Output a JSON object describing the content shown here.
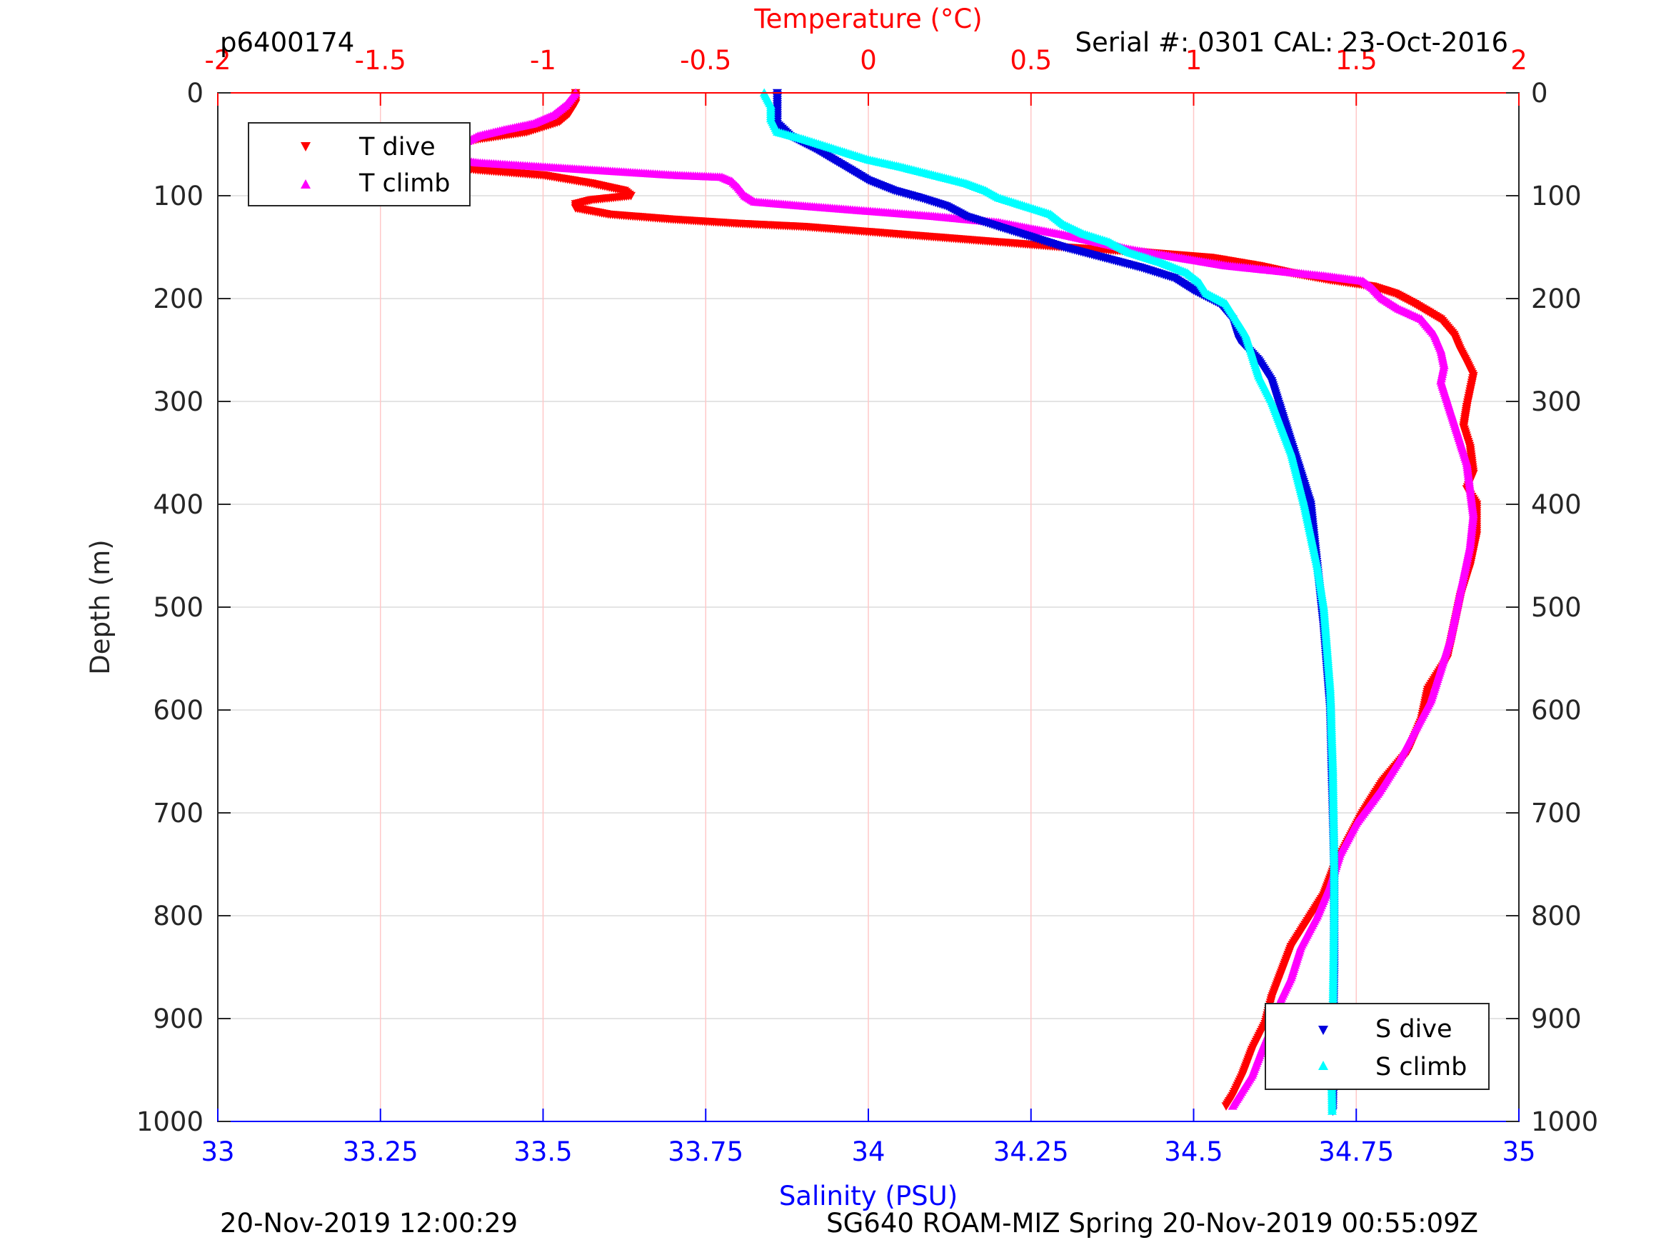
{
  "header": {
    "left": "p6400174",
    "right": "Serial #: 0301  CAL: 23-Oct-2016"
  },
  "footer": {
    "left": "20-Nov-2019 12:00:29",
    "right": "SG640 ROAM-MIZ Spring 20-Nov-2019 00:55:09Z"
  },
  "colors": {
    "temperature_axis": "#ff0000",
    "salinity_axis": "#0000ff",
    "t_dive": "#ff0000",
    "t_climb": "#ff00ff",
    "s_dive": "#0000dd",
    "s_climb": "#00ffff"
  },
  "chart_data": {
    "type": "scatter",
    "ylabel": "Depth (m)",
    "ylim": [
      0,
      1000
    ],
    "y_reversed": true,
    "y_ticks": [
      0,
      100,
      200,
      300,
      400,
      500,
      600,
      700,
      800,
      900,
      1000
    ],
    "temperature_axis": {
      "label": "Temperature (°C)",
      "position": "top",
      "lim": [
        -2,
        2
      ],
      "ticks": [
        "-2",
        "-1.5",
        "-1",
        "-0.5",
        "0",
        "0.5",
        "1",
        "1.5",
        "2"
      ]
    },
    "salinity_axis": {
      "label": "Salinity (PSU)",
      "position": "bottom",
      "lim": [
        33,
        35
      ],
      "ticks": [
        "33",
        "33.25",
        "33.5",
        "33.75",
        "34",
        "34.25",
        "34.5",
        "34.75",
        "35"
      ]
    },
    "grid": true,
    "legends": [
      {
        "placement": "top-left",
        "entries": [
          "T dive",
          "T climb"
        ]
      },
      {
        "placement": "bottom-right",
        "entries": [
          "S dive",
          "S climb"
        ]
      }
    ],
    "series": [
      {
        "name": "T dive",
        "axis": "temperature",
        "marker": "triangle-down",
        "points": [
          [
            -0.9,
            0
          ],
          [
            -0.9,
            10
          ],
          [
            -0.92,
            20
          ],
          [
            -0.95,
            28
          ],
          [
            -1.05,
            38
          ],
          [
            -1.2,
            45
          ],
          [
            -1.3,
            52
          ],
          [
            -1.35,
            60
          ],
          [
            -1.38,
            68
          ],
          [
            -1.2,
            75
          ],
          [
            -1.0,
            80
          ],
          [
            -0.85,
            88
          ],
          [
            -0.75,
            95
          ],
          [
            -0.73,
            100
          ],
          [
            -0.85,
            104
          ],
          [
            -0.9,
            108
          ],
          [
            -0.9,
            112
          ],
          [
            -0.8,
            118
          ],
          [
            -0.6,
            123
          ],
          [
            -0.4,
            127
          ],
          [
            -0.2,
            130
          ],
          [
            0.0,
            135
          ],
          [
            0.2,
            140
          ],
          [
            0.4,
            145
          ],
          [
            0.6,
            150
          ],
          [
            0.85,
            155
          ],
          [
            1.05,
            160
          ],
          [
            1.2,
            168
          ],
          [
            1.3,
            175
          ],
          [
            1.42,
            182
          ],
          [
            1.55,
            188
          ],
          [
            1.62,
            195
          ],
          [
            1.68,
            205
          ],
          [
            1.76,
            220
          ],
          [
            1.8,
            235
          ],
          [
            1.82,
            250
          ],
          [
            1.84,
            262
          ],
          [
            1.86,
            275
          ],
          [
            1.85,
            290
          ],
          [
            1.84,
            305
          ],
          [
            1.83,
            325
          ],
          [
            1.85,
            345
          ],
          [
            1.86,
            370
          ],
          [
            1.84,
            385
          ],
          [
            1.87,
            400
          ],
          [
            1.87,
            430
          ],
          [
            1.85,
            460
          ],
          [
            1.82,
            490
          ],
          [
            1.8,
            520
          ],
          [
            1.78,
            550
          ],
          [
            1.72,
            580
          ],
          [
            1.7,
            610
          ],
          [
            1.66,
            640
          ],
          [
            1.58,
            670
          ],
          [
            1.52,
            700
          ],
          [
            1.47,
            730
          ],
          [
            1.43,
            755
          ],
          [
            1.4,
            780
          ],
          [
            1.35,
            805
          ],
          [
            1.3,
            830
          ],
          [
            1.27,
            855
          ],
          [
            1.24,
            880
          ],
          [
            1.22,
            905
          ],
          [
            1.18,
            930
          ],
          [
            1.15,
            955
          ],
          [
            1.12,
            975
          ],
          [
            1.1,
            985
          ]
        ]
      },
      {
        "name": "T climb",
        "axis": "temperature",
        "marker": "triangle-up",
        "points": [
          [
            -0.9,
            0
          ],
          [
            -0.93,
            12
          ],
          [
            -0.97,
            22
          ],
          [
            -1.03,
            30
          ],
          [
            -1.12,
            36
          ],
          [
            -1.2,
            42
          ],
          [
            -1.25,
            50
          ],
          [
            -1.3,
            58
          ],
          [
            -1.32,
            63
          ],
          [
            -1.2,
            68
          ],
          [
            -1.0,
            72
          ],
          [
            -0.8,
            76
          ],
          [
            -0.6,
            80
          ],
          [
            -0.45,
            82
          ],
          [
            -0.42,
            86
          ],
          [
            -0.4,
            92
          ],
          [
            -0.38,
            100
          ],
          [
            -0.35,
            106
          ],
          [
            -0.2,
            110
          ],
          [
            0.0,
            115
          ],
          [
            0.2,
            120
          ],
          [
            0.4,
            126
          ],
          [
            0.5,
            132
          ],
          [
            0.6,
            138
          ],
          [
            0.7,
            145
          ],
          [
            0.8,
            152
          ],
          [
            0.95,
            160
          ],
          [
            1.1,
            168
          ],
          [
            1.25,
            173
          ],
          [
            1.4,
            178
          ],
          [
            1.52,
            183
          ],
          [
            1.55,
            190
          ],
          [
            1.58,
            200
          ],
          [
            1.63,
            210
          ],
          [
            1.7,
            220
          ],
          [
            1.74,
            235
          ],
          [
            1.76,
            250
          ],
          [
            1.77,
            265
          ],
          [
            1.76,
            280
          ],
          [
            1.78,
            300
          ],
          [
            1.8,
            320
          ],
          [
            1.82,
            340
          ],
          [
            1.84,
            360
          ],
          [
            1.85,
            385
          ],
          [
            1.86,
            410
          ],
          [
            1.85,
            440
          ],
          [
            1.83,
            470
          ],
          [
            1.81,
            500
          ],
          [
            1.79,
            530
          ],
          [
            1.76,
            560
          ],
          [
            1.73,
            590
          ],
          [
            1.68,
            620
          ],
          [
            1.63,
            650
          ],
          [
            1.57,
            680
          ],
          [
            1.5,
            710
          ],
          [
            1.45,
            740
          ],
          [
            1.42,
            770
          ],
          [
            1.38,
            800
          ],
          [
            1.33,
            830
          ],
          [
            1.3,
            860
          ],
          [
            1.27,
            880
          ],
          [
            1.25,
            900
          ],
          [
            1.21,
            930
          ],
          [
            1.18,
            955
          ],
          [
            1.14,
            975
          ],
          [
            1.12,
            985
          ]
        ]
      },
      {
        "name": "S dive",
        "axis": "salinity",
        "marker": "triangle-down",
        "points": [
          [
            33.86,
            0
          ],
          [
            33.86,
            15
          ],
          [
            33.86,
            30
          ],
          [
            33.88,
            42
          ],
          [
            33.92,
            55
          ],
          [
            33.96,
            70
          ],
          [
            34.0,
            85
          ],
          [
            34.04,
            95
          ],
          [
            34.08,
            102
          ],
          [
            34.12,
            110
          ],
          [
            34.15,
            120
          ],
          [
            34.2,
            130
          ],
          [
            34.25,
            140
          ],
          [
            34.3,
            150
          ],
          [
            34.36,
            160
          ],
          [
            34.42,
            170
          ],
          [
            34.47,
            180
          ],
          [
            34.5,
            192
          ],
          [
            34.54,
            205
          ],
          [
            34.56,
            220
          ],
          [
            34.57,
            240
          ],
          [
            34.6,
            260
          ],
          [
            34.62,
            280
          ],
          [
            34.63,
            300
          ],
          [
            34.64,
            320
          ],
          [
            34.65,
            340
          ],
          [
            34.66,
            360
          ],
          [
            34.67,
            380
          ],
          [
            34.68,
            400
          ],
          [
            34.685,
            430
          ],
          [
            34.69,
            460
          ],
          [
            34.695,
            490
          ],
          [
            34.7,
            520
          ],
          [
            34.705,
            560
          ],
          [
            34.71,
            600
          ],
          [
            34.712,
            650
          ],
          [
            34.714,
            700
          ],
          [
            34.716,
            750
          ],
          [
            34.716,
            800
          ],
          [
            34.716,
            850
          ],
          [
            34.715,
            900
          ],
          [
            34.715,
            950
          ],
          [
            34.714,
            990
          ]
        ]
      },
      {
        "name": "S climb",
        "axis": "salinity",
        "marker": "triangle-up",
        "points": [
          [
            33.84,
            0
          ],
          [
            33.85,
            12
          ],
          [
            33.85,
            25
          ],
          [
            33.86,
            38
          ],
          [
            33.9,
            45
          ],
          [
            33.95,
            55
          ],
          [
            34.0,
            65
          ],
          [
            34.05,
            72
          ],
          [
            34.1,
            80
          ],
          [
            34.15,
            88
          ],
          [
            34.18,
            95
          ],
          [
            34.2,
            102
          ],
          [
            34.24,
            110
          ],
          [
            34.28,
            118
          ],
          [
            34.3,
            128
          ],
          [
            34.33,
            137
          ],
          [
            34.37,
            145
          ],
          [
            34.4,
            155
          ],
          [
            34.45,
            165
          ],
          [
            34.49,
            175
          ],
          [
            34.51,
            185
          ],
          [
            34.52,
            195
          ],
          [
            34.55,
            205
          ],
          [
            34.56,
            215
          ],
          [
            34.58,
            235
          ],
          [
            34.59,
            255
          ],
          [
            34.6,
            275
          ],
          [
            34.62,
            300
          ],
          [
            34.635,
            325
          ],
          [
            34.65,
            350
          ],
          [
            34.66,
            375
          ],
          [
            34.67,
            400
          ],
          [
            34.68,
            430
          ],
          [
            34.69,
            460
          ],
          [
            34.7,
            500
          ],
          [
            34.705,
            540
          ],
          [
            34.71,
            580
          ],
          [
            34.712,
            620
          ],
          [
            34.714,
            660
          ],
          [
            34.715,
            700
          ],
          [
            34.716,
            750
          ],
          [
            34.716,
            800
          ],
          [
            34.715,
            850
          ],
          [
            34.714,
            900
          ],
          [
            34.712,
            950
          ],
          [
            34.713,
            990
          ]
        ]
      }
    ]
  }
}
